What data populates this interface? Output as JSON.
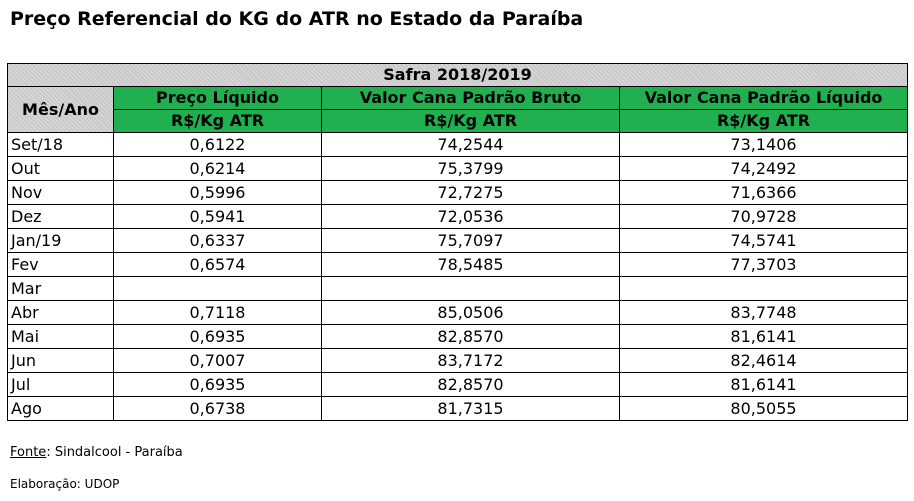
{
  "title": "Preço Referencial do KG do ATR no Estado da Paraíba",
  "table": {
    "safra": "Safra 2018/2019",
    "month_header": "Mês/Ano",
    "columns": [
      {
        "label": "Preço Líquido",
        "unit": "R$/Kg  ATR"
      },
      {
        "label": "Valor Cana Padrão Bruto",
        "unit": "R$/Kg  ATR"
      },
      {
        "label": "Valor Cana Padrão Líquido",
        "unit": "R$/Kg  ATR"
      }
    ],
    "rows": [
      {
        "month": "Set/18",
        "preco": "0,6122",
        "bruto": "74,2544",
        "liquido": "73,1406"
      },
      {
        "month": "Out",
        "preco": "0,6214",
        "bruto": "75,3799",
        "liquido": "74,2492"
      },
      {
        "month": "Nov",
        "preco": "0,5996",
        "bruto": "72,7275",
        "liquido": "71,6366"
      },
      {
        "month": "Dez",
        "preco": "0,5941",
        "bruto": "72,0536",
        "liquido": "70,9728"
      },
      {
        "month": "Jan/19",
        "preco": "0,6337",
        "bruto": "75,7097",
        "liquido": "74,5741"
      },
      {
        "month": "Fev",
        "preco": "0,6574",
        "bruto": "78,5485",
        "liquido": "77,3703"
      },
      {
        "month": "Mar",
        "preco": "",
        "bruto": "",
        "liquido": ""
      },
      {
        "month": "Abr",
        "preco": "0,7118",
        "bruto": "85,0506",
        "liquido": "83,7748"
      },
      {
        "month": "Mai",
        "preco": "0,6935",
        "bruto": "82,8570",
        "liquido": "81,6141"
      },
      {
        "month": "Jun",
        "preco": "0,7007",
        "bruto": "83,7172",
        "liquido": "82,4614"
      },
      {
        "month": "Jul",
        "preco": "0,6935",
        "bruto": "82,8570",
        "liquido": "81,6141"
      },
      {
        "month": "Ago",
        "preco": "0,6738",
        "bruto": "81,7315",
        "liquido": "80,5055"
      }
    ]
  },
  "footer": {
    "fonte_label": "Fonte",
    "fonte_text": ": Sindalcool - Paraíba",
    "elaboracao": "Elaboração: UDOP"
  },
  "colors": {
    "header_green": "#20b050",
    "header_gray": "#c9c9c9"
  }
}
